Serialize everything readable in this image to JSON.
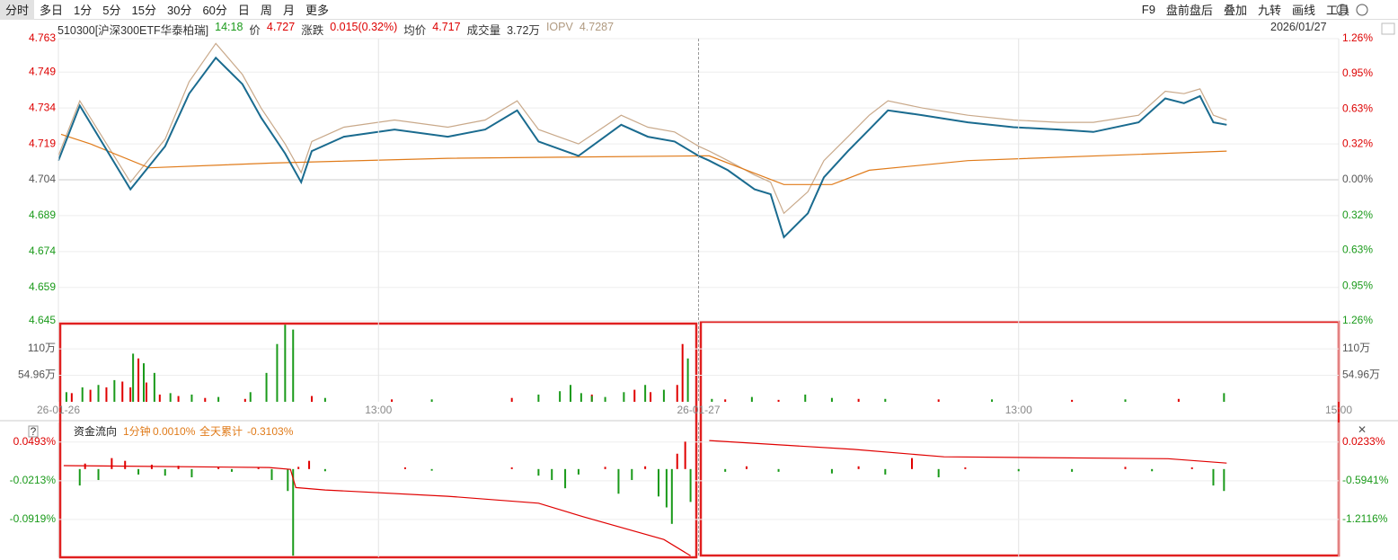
{
  "toolbar": {
    "periods": [
      "分时",
      "多日",
      "1分",
      "5分",
      "15分",
      "30分",
      "60分",
      "日",
      "周",
      "月",
      "更多"
    ],
    "tools": [
      "F9",
      "盘前盘后",
      "叠加",
      "九转",
      "画线",
      "工具"
    ]
  },
  "info": {
    "code": "510300[沪深300ETF华泰柏瑞]",
    "time": "14:18",
    "price_label": "价",
    "price": 4.727,
    "change_label": "涨跌",
    "change": "0.015(0.32%)",
    "avg_label": "均价",
    "avg": 4.717,
    "volume_label": "成交量",
    "volume": "3.72万",
    "iopv_label": "IOPV",
    "iopv": 4.7287,
    "date": "2026/01/27"
  },
  "chart_data": [
    {
      "type": "line",
      "xlim": [
        0,
        480
      ],
      "ylim": [
        4.645,
        4.763
      ],
      "yticks": [
        4.763,
        4.749,
        4.734,
        4.719,
        4.704,
        4.689,
        4.674,
        4.659,
        4.645
      ],
      "y2lim": [
        -1.26,
        1.26
      ],
      "y2ticks": [
        {
          "value": 1.26,
          "label": "1.26%"
        },
        {
          "value": 0.95,
          "label": "0.95%"
        },
        {
          "value": 0.63,
          "label": "0.63%"
        },
        {
          "value": 0.32,
          "label": "0.32%"
        },
        {
          "value": 0,
          "label": "0.00%"
        },
        {
          "value": -0.32,
          "label": "0.32%"
        },
        {
          "value": -0.63,
          "label": "0.63%"
        },
        {
          "value": -0.95,
          "label": "0.95%"
        },
        {
          "value": -1.26,
          "label": "1.26%"
        }
      ],
      "series": [
        {
          "color": "#c9a98a",
          "x": [
            0,
            8,
            27,
            40,
            49,
            59,
            69,
            76,
            85,
            91,
            95,
            107,
            126,
            146,
            160,
            172,
            180,
            195,
            211,
            221,
            231,
            240,
            244,
            251,
            261,
            267,
            272,
            281,
            287,
            296,
            304,
            311,
            324,
            341,
            358,
            375,
            388,
            405,
            415,
            422,
            428,
            433,
            438
          ],
          "values": [
            4.714,
            4.737,
            4.703,
            4.721,
            4.745,
            4.761,
            4.748,
            4.734,
            4.719,
            4.707,
            4.72,
            4.726,
            4.729,
            4.726,
            4.729,
            4.737,
            4.725,
            4.719,
            4.731,
            4.726,
            4.724,
            4.718,
            4.716,
            4.712,
            4.706,
            4.703,
            4.69,
            4.699,
            4.712,
            4.722,
            4.731,
            4.737,
            4.734,
            4.731,
            4.729,
            4.728,
            4.728,
            4.731,
            4.741,
            4.74,
            4.742,
            4.731,
            4.729
          ]
        },
        {
          "color": "#e07b1a",
          "x": [
            1,
            12,
            34,
            80,
            146,
            240,
            244,
            272,
            290,
            304,
            341,
            438
          ],
          "values": [
            4.723,
            4.719,
            4.709,
            4.711,
            4.713,
            4.714,
            4.714,
            4.702,
            4.702,
            4.708,
            4.712,
            4.716
          ]
        },
        {
          "color": "#1a6b8f",
          "x": [
            0,
            8,
            27,
            40,
            49,
            59,
            69,
            76,
            85,
            91,
            95,
            107,
            126,
            146,
            160,
            172,
            180,
            195,
            211,
            221,
            231,
            240,
            244,
            251,
            261,
            267,
            272,
            281,
            287,
            296,
            304,
            311,
            324,
            341,
            358,
            375,
            388,
            405,
            415,
            422,
            428,
            433,
            438
          ],
          "values": [
            4.712,
            4.735,
            4.7,
            4.718,
            4.74,
            4.755,
            4.744,
            4.73,
            4.715,
            4.703,
            4.716,
            4.722,
            4.725,
            4.722,
            4.725,
            4.733,
            4.72,
            4.714,
            4.727,
            4.722,
            4.72,
            4.714,
            4.712,
            4.708,
            4.7,
            4.698,
            4.68,
            4.69,
            4.705,
            4.716,
            4.725,
            4.733,
            4.731,
            4.728,
            4.726,
            4.725,
            4.724,
            4.728,
            4.738,
            4.736,
            4.739,
            4.728,
            4.727
          ]
        }
      ]
    },
    {
      "type": "bar",
      "xlim": [
        0,
        480
      ],
      "ylim": [
        0,
        168
      ],
      "xticks": [
        {
          "value": 0,
          "label": "26-01-26"
        },
        {
          "value": 120,
          "label": "13:00"
        },
        {
          "value": 240,
          "label": "26-01-27"
        },
        {
          "value": 360,
          "label": "13:00"
        },
        {
          "value": 480,
          "label": "15:00"
        }
      ],
      "yticks": [
        {
          "value": 110,
          "label": "110万"
        },
        {
          "value": 54.96,
          "label": "54.96万"
        }
      ],
      "series": [
        {
          "color": "#e00000",
          "x": [
            5,
            12,
            18,
            24,
            27,
            30,
            33,
            38,
            45,
            55,
            70,
            95,
            125,
            170,
            200,
            216,
            222,
            232,
            234,
            250,
            270,
            300,
            330,
            380,
            420
          ],
          "values": [
            18,
            25,
            30,
            42,
            30,
            90,
            40,
            15,
            12,
            8,
            6,
            12,
            5,
            8,
            15,
            25,
            20,
            35,
            120,
            5,
            4,
            6,
            5,
            4,
            6
          ]
        },
        {
          "color": "#1a9a1a",
          "x": [
            3,
            9,
            15,
            21,
            28,
            32,
            36,
            42,
            50,
            60,
            72,
            78,
            82,
            85,
            88,
            100,
            140,
            180,
            188,
            192,
            196,
            200,
            205,
            212,
            220,
            227,
            236,
            245,
            260,
            280,
            290,
            310,
            350,
            400,
            437
          ],
          "values": [
            20,
            30,
            35,
            45,
            100,
            80,
            60,
            18,
            15,
            10,
            20,
            60,
            120,
            160,
            150,
            8,
            5,
            15,
            22,
            35,
            18,
            12,
            10,
            20,
            35,
            25,
            90,
            6,
            10,
            15,
            8,
            6,
            5,
            5,
            18
          ]
        }
      ]
    },
    {
      "type": "bar",
      "title": "资金流向",
      "annotations": [
        "1分钟",
        "0.0010%",
        "全天累计",
        "-0.3103%"
      ],
      "xlim": [
        0,
        480
      ],
      "ylim": [
        -0.161,
        0.085
      ],
      "yticks": [
        {
          "value": 0.0493,
          "label": "0.0493%"
        },
        {
          "value": -0.0213,
          "label": "-0.0213%"
        },
        {
          "value": -0.0919,
          "label": "-0.0919%"
        }
      ],
      "y2lim": [
        -1.815,
        0.339
      ],
      "y2ticks": [
        {
          "value": 0.0233,
          "label": "0.0233%"
        },
        {
          "value": -0.5941,
          "label": "-0.5941%"
        },
        {
          "value": -1.2116,
          "label": "-1.2116%"
        }
      ],
      "series": [
        {
          "type": "bar",
          "color": "#e00000",
          "x": [
            10,
            20,
            25,
            35,
            45,
            60,
            75,
            90,
            94,
            130,
            170,
            205,
            220,
            232,
            235,
            258,
            300,
            320,
            340,
            400,
            425
          ],
          "values": [
            0.01,
            0.02,
            0.015,
            0.008,
            0.006,
            0.004,
            0.003,
            0.004,
            0.015,
            0.003,
            0.003,
            0.004,
            0.005,
            0.028,
            0.05,
            0.005,
            0.005,
            0.02,
            0.003,
            0.004,
            0.003
          ]
        },
        {
          "type": "bar",
          "color": "#1a9a1a",
          "x": [
            8,
            15,
            30,
            40,
            50,
            65,
            80,
            86,
            88,
            100,
            140,
            180,
            185,
            190,
            195,
            210,
            215,
            225,
            228,
            230,
            237,
            250,
            270,
            290,
            310,
            330,
            360,
            380,
            410,
            433,
            437
          ],
          "values": [
            -0.03,
            -0.02,
            -0.01,
            -0.012,
            -0.015,
            -0.005,
            -0.02,
            -0.04,
            -0.158,
            -0.004,
            -0.003,
            -0.012,
            -0.02,
            -0.035,
            -0.01,
            -0.045,
            -0.02,
            -0.05,
            -0.07,
            -0.1,
            -0.06,
            -0.005,
            -0.005,
            -0.008,
            -0.01,
            -0.015,
            -0.004,
            -0.005,
            -0.004,
            -0.03,
            -0.04
          ]
        },
        {
          "type": "line",
          "axis": "y2",
          "color": "#e00000",
          "x": [
            2,
            79,
            87,
            89,
            100,
            146,
            180,
            197,
            227,
            237,
            240,
            244,
            298,
            332,
            416,
            438
          ],
          "values": [
            -0.35,
            -0.38,
            -0.41,
            -0.7,
            -0.74,
            -0.84,
            -0.95,
            -1.17,
            -1.53,
            -1.79,
            null,
            0.05,
            -0.09,
            -0.21,
            -0.24,
            -0.31
          ]
        }
      ]
    }
  ]
}
